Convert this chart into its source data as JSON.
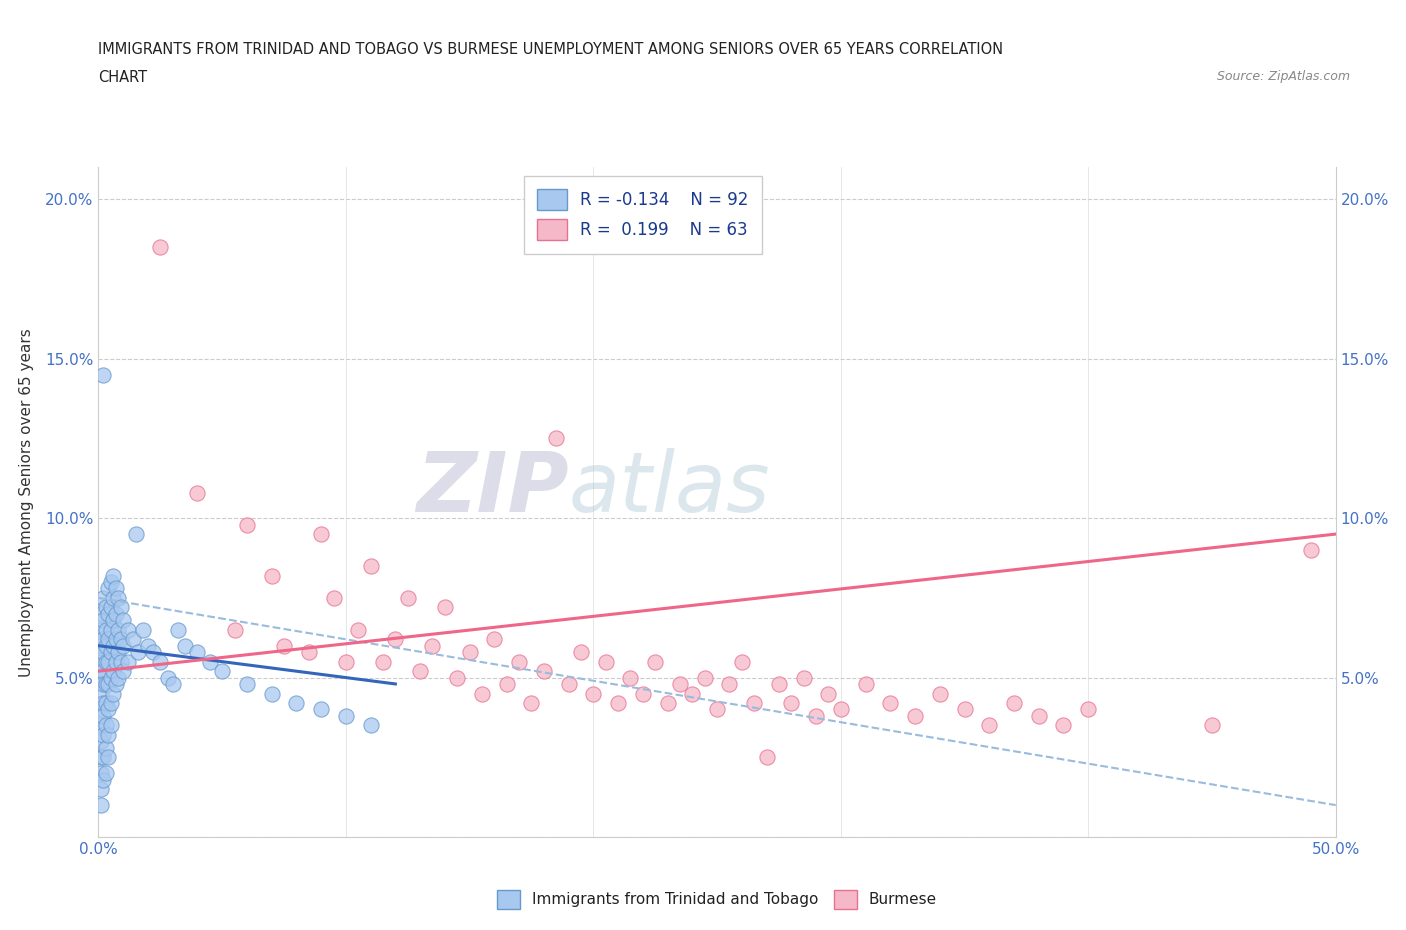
{
  "title_line1": "IMMIGRANTS FROM TRINIDAD AND TOBAGO VS BURMESE UNEMPLOYMENT AMONG SENIORS OVER 65 YEARS CORRELATION",
  "title_line2": "CHART",
  "source_text": "Source: ZipAtlas.com",
  "ylabel": "Unemployment Among Seniors over 65 years",
  "xlim": [
    0.0,
    0.5
  ],
  "ylim": [
    0.0,
    0.21
  ],
  "xticks": [
    0.0,
    0.1,
    0.2,
    0.3,
    0.4,
    0.5
  ],
  "xticklabels": [
    "0.0%",
    "",
    "",
    "",
    "",
    "50.0%"
  ],
  "yticks": [
    0.0,
    0.05,
    0.1,
    0.15,
    0.2
  ],
  "yticklabels": [
    "",
    "5.0%",
    "10.0%",
    "15.0%",
    "20.0%"
  ],
  "right_yticklabels": [
    "",
    "5.0%",
    "10.0%",
    "15.0%",
    "20.0%"
  ],
  "watermark_zip": "ZIP",
  "watermark_atlas": "atlas",
  "blue_color": "#A8C8F0",
  "pink_color": "#F5B8C8",
  "blue_edge_color": "#6699CC",
  "pink_edge_color": "#E87090",
  "blue_line_color": "#3366BB",
  "pink_line_color": "#EE6688",
  "dashed_line_color": "#99BBDD",
  "grid_color": "#CCCCCC",
  "title_color": "#222222",
  "blue_scatter": [
    [
      0.001,
      0.07
    ],
    [
      0.001,
      0.065
    ],
    [
      0.001,
      0.06
    ],
    [
      0.001,
      0.055
    ],
    [
      0.001,
      0.05
    ],
    [
      0.001,
      0.045
    ],
    [
      0.001,
      0.04
    ],
    [
      0.001,
      0.035
    ],
    [
      0.001,
      0.03
    ],
    [
      0.001,
      0.025
    ],
    [
      0.001,
      0.02
    ],
    [
      0.001,
      0.015
    ],
    [
      0.001,
      0.01
    ],
    [
      0.002,
      0.075
    ],
    [
      0.002,
      0.068
    ],
    [
      0.002,
      0.062
    ],
    [
      0.002,
      0.058
    ],
    [
      0.002,
      0.052
    ],
    [
      0.002,
      0.048
    ],
    [
      0.002,
      0.042
    ],
    [
      0.002,
      0.038
    ],
    [
      0.002,
      0.032
    ],
    [
      0.002,
      0.025
    ],
    [
      0.002,
      0.018
    ],
    [
      0.002,
      0.145
    ],
    [
      0.003,
      0.072
    ],
    [
      0.003,
      0.065
    ],
    [
      0.003,
      0.06
    ],
    [
      0.003,
      0.055
    ],
    [
      0.003,
      0.048
    ],
    [
      0.003,
      0.042
    ],
    [
      0.003,
      0.035
    ],
    [
      0.003,
      0.028
    ],
    [
      0.003,
      0.02
    ],
    [
      0.004,
      0.078
    ],
    [
      0.004,
      0.07
    ],
    [
      0.004,
      0.062
    ],
    [
      0.004,
      0.055
    ],
    [
      0.004,
      0.048
    ],
    [
      0.004,
      0.04
    ],
    [
      0.004,
      0.032
    ],
    [
      0.004,
      0.025
    ],
    [
      0.005,
      0.08
    ],
    [
      0.005,
      0.072
    ],
    [
      0.005,
      0.065
    ],
    [
      0.005,
      0.058
    ],
    [
      0.005,
      0.05
    ],
    [
      0.005,
      0.042
    ],
    [
      0.005,
      0.035
    ],
    [
      0.006,
      0.082
    ],
    [
      0.006,
      0.075
    ],
    [
      0.006,
      0.068
    ],
    [
      0.006,
      0.06
    ],
    [
      0.006,
      0.052
    ],
    [
      0.006,
      0.045
    ],
    [
      0.007,
      0.078
    ],
    [
      0.007,
      0.07
    ],
    [
      0.007,
      0.062
    ],
    [
      0.007,
      0.055
    ],
    [
      0.007,
      0.048
    ],
    [
      0.008,
      0.075
    ],
    [
      0.008,
      0.065
    ],
    [
      0.008,
      0.058
    ],
    [
      0.008,
      0.05
    ],
    [
      0.009,
      0.072
    ],
    [
      0.009,
      0.062
    ],
    [
      0.009,
      0.055
    ],
    [
      0.01,
      0.068
    ],
    [
      0.01,
      0.06
    ],
    [
      0.01,
      0.052
    ],
    [
      0.012,
      0.065
    ],
    [
      0.012,
      0.055
    ],
    [
      0.014,
      0.062
    ],
    [
      0.015,
      0.095
    ],
    [
      0.016,
      0.058
    ],
    [
      0.018,
      0.065
    ],
    [
      0.02,
      0.06
    ],
    [
      0.022,
      0.058
    ],
    [
      0.025,
      0.055
    ],
    [
      0.028,
      0.05
    ],
    [
      0.03,
      0.048
    ],
    [
      0.032,
      0.065
    ],
    [
      0.035,
      0.06
    ],
    [
      0.04,
      0.058
    ],
    [
      0.045,
      0.055
    ],
    [
      0.05,
      0.052
    ],
    [
      0.06,
      0.048
    ],
    [
      0.07,
      0.045
    ],
    [
      0.08,
      0.042
    ],
    [
      0.09,
      0.04
    ],
    [
      0.1,
      0.038
    ],
    [
      0.11,
      0.035
    ]
  ],
  "pink_scatter": [
    [
      0.025,
      0.185
    ],
    [
      0.04,
      0.108
    ],
    [
      0.055,
      0.065
    ],
    [
      0.06,
      0.098
    ],
    [
      0.07,
      0.082
    ],
    [
      0.075,
      0.06
    ],
    [
      0.085,
      0.058
    ],
    [
      0.09,
      0.095
    ],
    [
      0.095,
      0.075
    ],
    [
      0.1,
      0.055
    ],
    [
      0.105,
      0.065
    ],
    [
      0.11,
      0.085
    ],
    [
      0.115,
      0.055
    ],
    [
      0.12,
      0.062
    ],
    [
      0.125,
      0.075
    ],
    [
      0.13,
      0.052
    ],
    [
      0.135,
      0.06
    ],
    [
      0.14,
      0.072
    ],
    [
      0.145,
      0.05
    ],
    [
      0.15,
      0.058
    ],
    [
      0.155,
      0.045
    ],
    [
      0.16,
      0.062
    ],
    [
      0.165,
      0.048
    ],
    [
      0.17,
      0.055
    ],
    [
      0.175,
      0.042
    ],
    [
      0.18,
      0.052
    ],
    [
      0.185,
      0.125
    ],
    [
      0.19,
      0.048
    ],
    [
      0.195,
      0.058
    ],
    [
      0.2,
      0.045
    ],
    [
      0.205,
      0.055
    ],
    [
      0.21,
      0.042
    ],
    [
      0.215,
      0.05
    ],
    [
      0.22,
      0.045
    ],
    [
      0.225,
      0.055
    ],
    [
      0.23,
      0.042
    ],
    [
      0.235,
      0.048
    ],
    [
      0.24,
      0.045
    ],
    [
      0.245,
      0.05
    ],
    [
      0.25,
      0.04
    ],
    [
      0.255,
      0.048
    ],
    [
      0.26,
      0.055
    ],
    [
      0.265,
      0.042
    ],
    [
      0.27,
      0.025
    ],
    [
      0.275,
      0.048
    ],
    [
      0.28,
      0.042
    ],
    [
      0.285,
      0.05
    ],
    [
      0.29,
      0.038
    ],
    [
      0.295,
      0.045
    ],
    [
      0.3,
      0.04
    ],
    [
      0.31,
      0.048
    ],
    [
      0.32,
      0.042
    ],
    [
      0.33,
      0.038
    ],
    [
      0.34,
      0.045
    ],
    [
      0.35,
      0.04
    ],
    [
      0.36,
      0.035
    ],
    [
      0.37,
      0.042
    ],
    [
      0.38,
      0.038
    ],
    [
      0.39,
      0.035
    ],
    [
      0.4,
      0.04
    ],
    [
      0.45,
      0.035
    ],
    [
      0.49,
      0.09
    ]
  ],
  "blue_trend_x": [
    0.0,
    0.12
  ],
  "blue_trend_y": [
    0.06,
    0.048
  ],
  "pink_trend_x": [
    0.0,
    0.5
  ],
  "pink_trend_y": [
    0.052,
    0.095
  ],
  "dashed_trend_x": [
    0.0,
    0.5
  ],
  "dashed_trend_y": [
    0.075,
    0.01
  ]
}
